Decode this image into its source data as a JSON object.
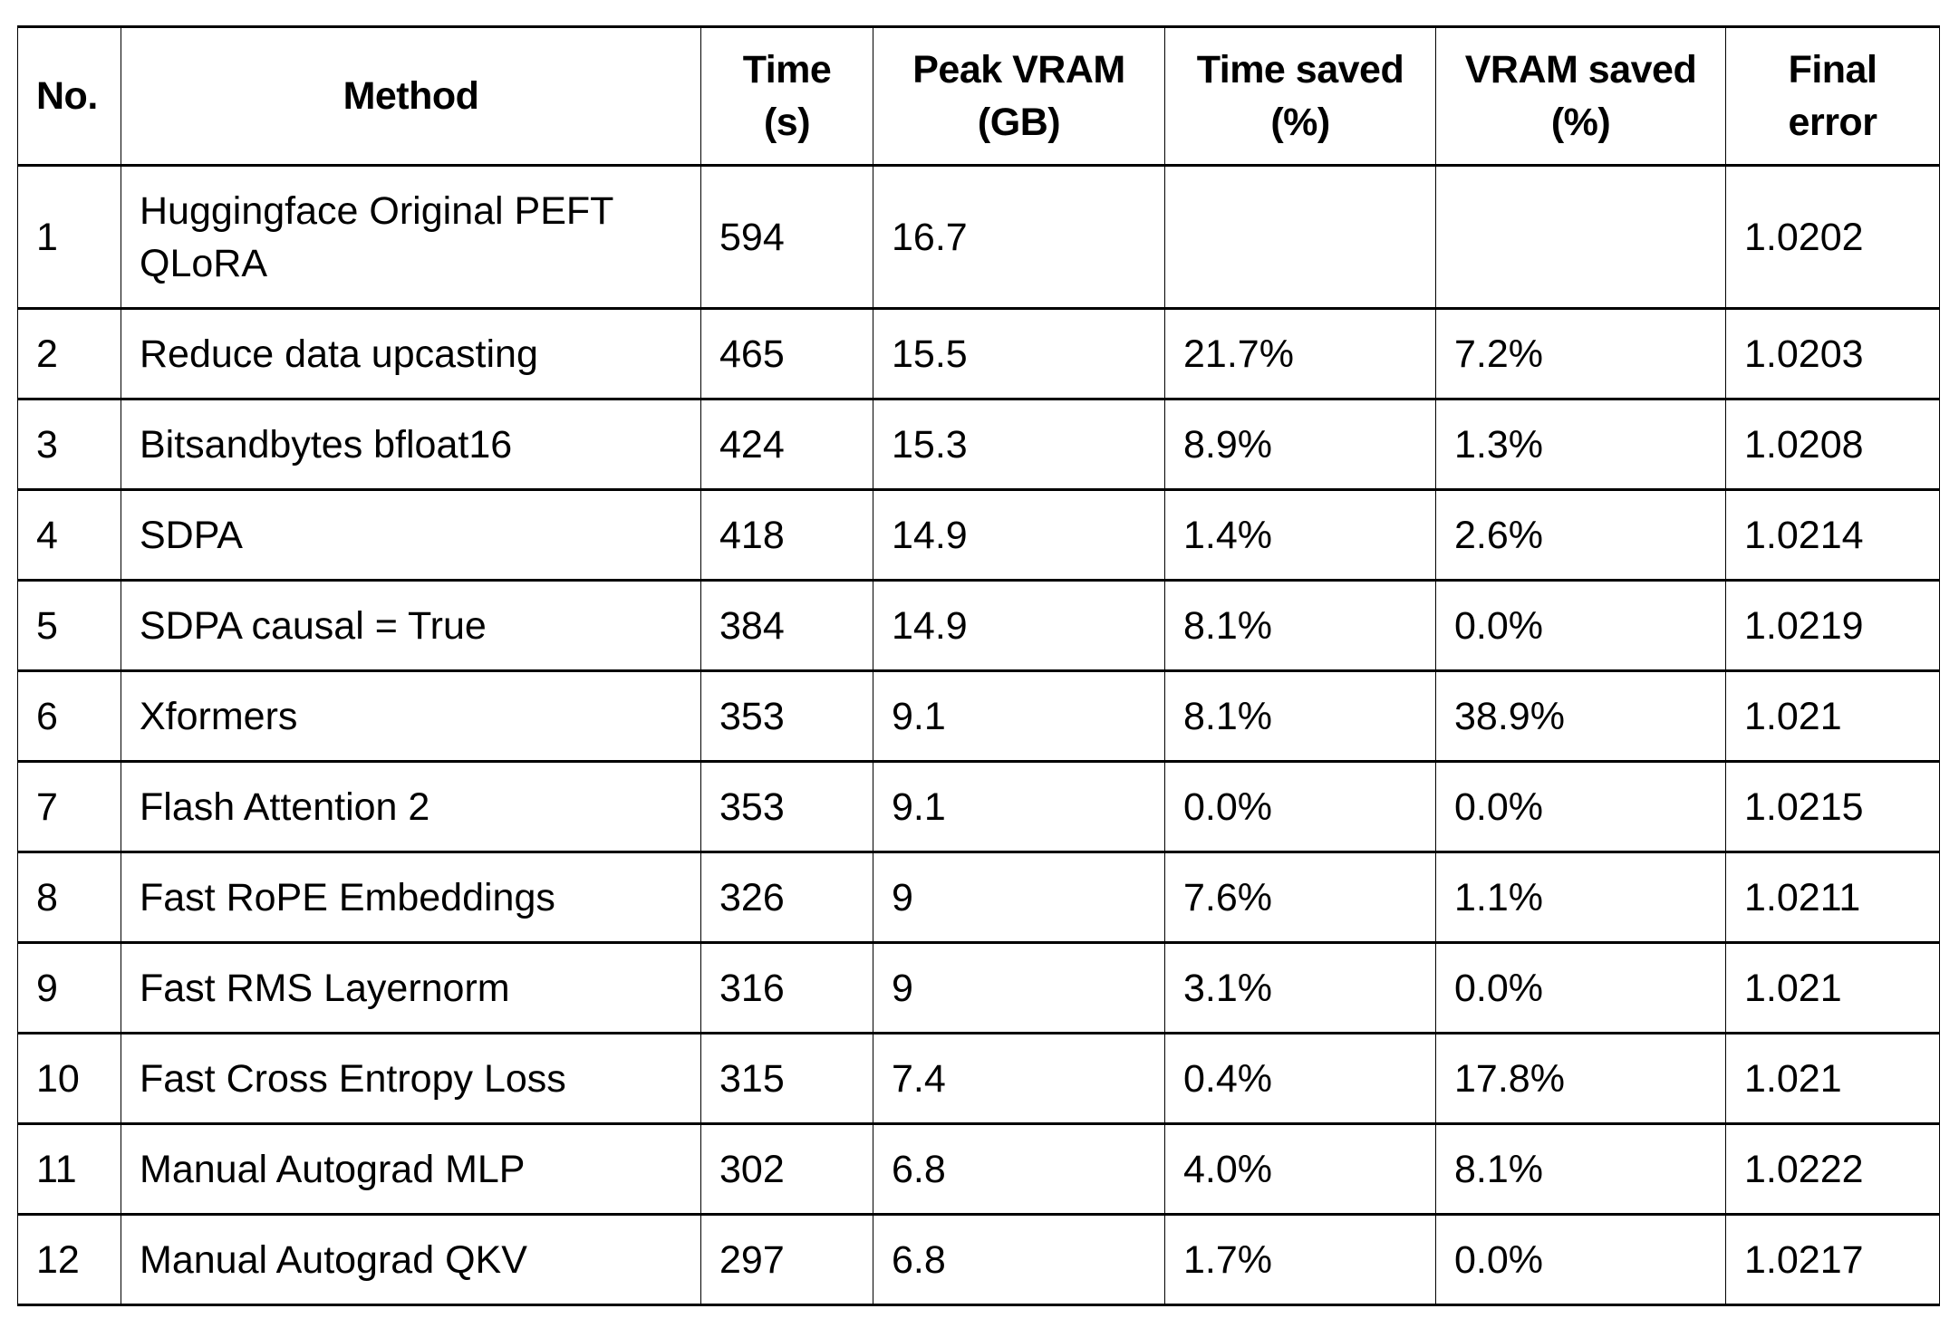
{
  "table": {
    "headers": [
      {
        "line1": "No.",
        "line2": ""
      },
      {
        "line1": "Method",
        "line2": ""
      },
      {
        "line1": "Time",
        "line2": "(s)"
      },
      {
        "line1": "Peak VRAM",
        "line2": "(GB)"
      },
      {
        "line1": "Time saved",
        "line2": "(%)"
      },
      {
        "line1": "VRAM saved",
        "line2": "(%)"
      },
      {
        "line1": "Final",
        "line2": "error"
      }
    ],
    "rows": [
      [
        "1",
        "Huggingface Original PEFT QLoRA",
        "594",
        "16.7",
        "",
        "",
        "1.0202"
      ],
      [
        "2",
        "Reduce data upcasting",
        "465",
        "15.5",
        "21.7%",
        "7.2%",
        "1.0203"
      ],
      [
        "3",
        "Bitsandbytes bfloat16",
        "424",
        "15.3",
        "8.9%",
        "1.3%",
        "1.0208"
      ],
      [
        "4",
        "SDPA",
        "418",
        "14.9",
        "1.4%",
        "2.6%",
        "1.0214"
      ],
      [
        "5",
        "SDPA causal = True",
        "384",
        "14.9",
        "8.1%",
        "0.0%",
        "1.0219"
      ],
      [
        "6",
        "Xformers",
        "353",
        "9.1",
        "8.1%",
        "38.9%",
        "1.021"
      ],
      [
        "7",
        "Flash Attention 2",
        "353",
        "9.1",
        "0.0%",
        "0.0%",
        "1.0215"
      ],
      [
        "8",
        "Fast RoPE Embeddings",
        "326",
        "9",
        "7.6%",
        "1.1%",
        "1.0211"
      ],
      [
        "9",
        "Fast RMS Layernorm",
        "316",
        "9",
        "3.1%",
        "0.0%",
        "1.021"
      ],
      [
        "10",
        "Fast Cross Entropy Loss",
        "315",
        "7.4",
        "0.4%",
        "17.8%",
        "1.021"
      ],
      [
        "11",
        "Manual Autograd MLP",
        "302",
        "6.8",
        "4.0%",
        "8.1%",
        "1.0222"
      ],
      [
        "12",
        "Manual Autograd QKV",
        "297",
        "6.8",
        "1.7%",
        "0.0%",
        "1.0217"
      ]
    ]
  }
}
